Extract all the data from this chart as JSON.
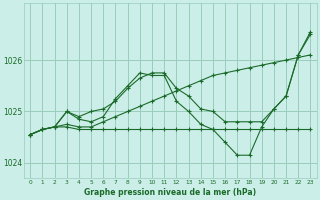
{
  "background_color": "#cceee8",
  "grid_color": "#99ccbb",
  "line_color": "#1a6b2a",
  "marker_color": "#1a6b2a",
  "title": "Graphe pression niveau de la mer (hPa)",
  "ylim": [
    1023.7,
    1027.1
  ],
  "xlim": [
    -0.5,
    23.5
  ],
  "yticks": [
    1024,
    1025,
    1026
  ],
  "xticks": [
    0,
    1,
    2,
    3,
    4,
    5,
    6,
    7,
    8,
    9,
    10,
    11,
    12,
    13,
    14,
    15,
    16,
    17,
    18,
    19,
    20,
    21,
    22,
    23
  ],
  "series": [
    [
      1024.55,
      1024.65,
      1024.7,
      1024.7,
      1024.65,
      1024.65,
      1024.65,
      1024.65,
      1024.65,
      1024.65,
      1024.65,
      1024.65,
      1024.65,
      1024.65,
      1024.65,
      1024.65,
      1024.65,
      1024.65,
      1024.65,
      1024.65,
      1024.65,
      1024.65,
      1024.65,
      1024.65
    ],
    [
      1024.55,
      1024.65,
      1024.7,
      1024.75,
      1024.7,
      1024.7,
      1024.8,
      1024.9,
      1025.0,
      1025.1,
      1025.2,
      1025.3,
      1025.4,
      1025.5,
      1025.6,
      1025.7,
      1025.75,
      1025.8,
      1025.85,
      1025.9,
      1025.95,
      1026.0,
      1026.05,
      1026.1
    ],
    [
      1024.55,
      1024.65,
      1024.7,
      1025.0,
      1024.9,
      1025.0,
      1025.05,
      1025.2,
      1025.45,
      1025.65,
      1025.75,
      1025.75,
      1025.45,
      1025.3,
      1025.05,
      1025.0,
      1024.8,
      1024.8,
      1024.8,
      1024.8,
      1025.05,
      1025.3,
      1026.1,
      1026.5
    ],
    [
      1024.55,
      1024.65,
      1024.7,
      1025.0,
      1024.85,
      1024.8,
      1024.9,
      1025.25,
      1025.5,
      1025.75,
      1025.7,
      1025.7,
      1025.2,
      1025.0,
      1024.75,
      1024.65,
      1024.4,
      1024.15,
      1024.15,
      1024.7,
      1025.05,
      1025.3,
      1026.1,
      1026.55
    ]
  ]
}
